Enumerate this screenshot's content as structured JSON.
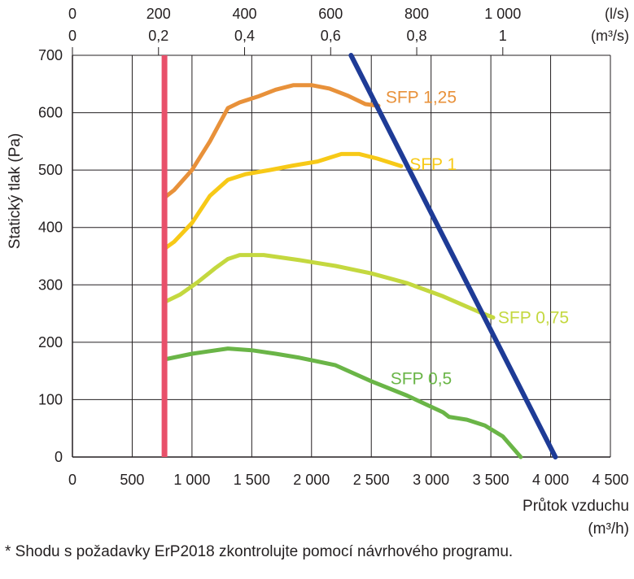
{
  "chart_data": {
    "type": "line",
    "xlabel": "Průtok vzduchu",
    "xlabel_unit": "(m³/h)",
    "ylabel": "Statický tlak (Pa)",
    "xlim": [
      0,
      4500
    ],
    "ylim": [
      0,
      700
    ],
    "x_ticks": [
      0,
      500,
      1000,
      1500,
      2000,
      2500,
      3000,
      3500,
      4000,
      4500
    ],
    "x_tick_labels": [
      "0",
      "500",
      "1 000",
      "1 500",
      "2 000",
      "2 500",
      "3 000",
      "3 500",
      "4 000",
      "4 500"
    ],
    "y_ticks": [
      0,
      100,
      200,
      300,
      400,
      500,
      600,
      700
    ],
    "y_tick_labels": [
      "0",
      "100",
      "200",
      "300",
      "400",
      "500",
      "600",
      "700"
    ],
    "top_axis_ls": {
      "unit": "(l/s)",
      "ticks_m3h": [
        0,
        720,
        1440,
        2160,
        2880,
        3600
      ],
      "labels": [
        "0",
        "200",
        "400",
        "600",
        "800",
        "1 000"
      ]
    },
    "top_axis_m3s": {
      "unit": "(m³/s)",
      "ticks_m3h": [
        0,
        720,
        1440,
        2160,
        2880,
        3600
      ],
      "labels": [
        "0",
        "0,2",
        "0,4",
        "0,6",
        "0,8",
        "1"
      ]
    },
    "grid": true,
    "series": [
      {
        "name": "SFP 1,25",
        "color": "#e8913a",
        "x": [
          770,
          850,
          1000,
          1150,
          1300,
          1400,
          1550,
          1700,
          1850,
          2000,
          2150,
          2300,
          2450,
          2560
        ],
        "y": [
          452,
          465,
          500,
          550,
          608,
          618,
          628,
          640,
          648,
          648,
          642,
          630,
          615,
          612
        ]
      },
      {
        "name": "SFP 1",
        "color": "#f7c917",
        "x": [
          770,
          850,
          1000,
          1150,
          1300,
          1450,
          1650,
          1850,
          2050,
          2250,
          2400,
          2550,
          2750
        ],
        "y": [
          363,
          375,
          408,
          455,
          483,
          493,
          500,
          508,
          515,
          528,
          528,
          520,
          507
        ]
      },
      {
        "name": "SFP 0,75",
        "color": "#c4d83f",
        "x": [
          770,
          900,
          1050,
          1200,
          1300,
          1400,
          1600,
          1900,
          2200,
          2500,
          2800,
          3100,
          3400,
          3520
        ],
        "y": [
          270,
          283,
          305,
          330,
          345,
          352,
          352,
          343,
          333,
          320,
          303,
          280,
          253,
          243
        ]
      },
      {
        "name": "SFP 0,5",
        "color": "#6ab547",
        "x": [
          770,
          1000,
          1300,
          1500,
          1700,
          1900,
          2200,
          2500,
          2800,
          3100,
          3150,
          3300,
          3450,
          3600,
          3750
        ],
        "y": [
          170,
          180,
          189,
          186,
          180,
          173,
          160,
          132,
          107,
          78,
          70,
          65,
          55,
          36,
          0
        ]
      },
      {
        "name": "",
        "color": "#1e3b96",
        "x": [
          2330,
          4040
        ],
        "y": [
          700,
          0
        ]
      }
    ],
    "vline": {
      "x": 770,
      "color": "#e8506a"
    },
    "annotations": [
      {
        "text": "SFP 1,25",
        "x": 2620,
        "y": 627,
        "color": "#e8913a"
      },
      {
        "text": "SFP 1",
        "x": 2820,
        "y": 510,
        "color": "#f7c917"
      },
      {
        "text": "SFP 0,75",
        "x": 3560,
        "y": 243,
        "color": "#c4d83f"
      },
      {
        "text": "SFP 0,5",
        "x": 2660,
        "y": 137,
        "color": "#6ab547"
      }
    ]
  },
  "footnote": "* Shodu s požadavky ErP2018 zkontrolujte pomocí návrhového programu."
}
